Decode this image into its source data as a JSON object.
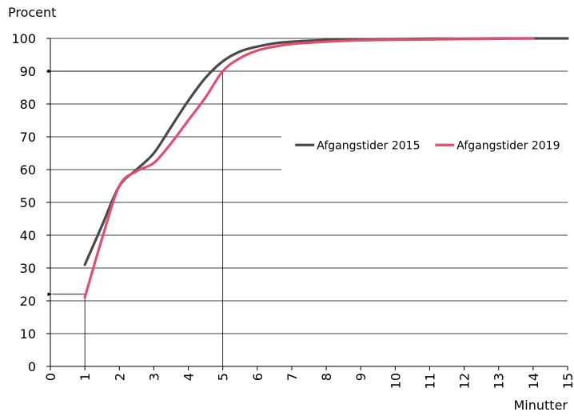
{
  "chart_data": {
    "type": "line",
    "ylabel": "Procent",
    "xlabel": "Minutter",
    "xlim": [
      0,
      15
    ],
    "ylim": [
      0,
      100
    ],
    "x_ticks": [
      0,
      1,
      2,
      3,
      4,
      5,
      6,
      7,
      8,
      9,
      10,
      11,
      12,
      13,
      14,
      15
    ],
    "y_ticks": [
      0,
      10,
      20,
      30,
      40,
      50,
      60,
      70,
      80,
      90,
      100
    ],
    "grid": "horizontal",
    "legend_placement": "right-middle",
    "series": [
      {
        "name": "Afgangstider 2015",
        "color": "#4a4a4a",
        "x": [
          1,
          1.5,
          2,
          2.5,
          3,
          3.5,
          4,
          4.5,
          5,
          5.5,
          6,
          6.5,
          7,
          8,
          9,
          10,
          11,
          12,
          13,
          14,
          15
        ],
        "y": [
          31,
          43,
          55,
          60,
          65,
          73,
          81,
          88,
          93,
          96,
          97.5,
          98.5,
          99,
          99.5,
          99.7,
          99.8,
          99.9,
          99.9,
          100,
          100,
          100
        ]
      },
      {
        "name": "Afgangstider 2019",
        "color": "#e0506e",
        "x": [
          1,
          1.5,
          2,
          2.5,
          3,
          3.5,
          4,
          4.5,
          5,
          5.5,
          6,
          6.5,
          7,
          8,
          9,
          10,
          11,
          12,
          13,
          14
        ],
        "y": [
          21,
          39,
          55,
          59.5,
          62,
          68,
          75,
          82,
          90,
          94,
          96.3,
          97.5,
          98.3,
          99,
          99.4,
          99.6,
          99.7,
          99.8,
          99.9,
          100
        ]
      }
    ],
    "annotations": [
      {
        "type": "reference-lines",
        "x": 5,
        "y": 90
      },
      {
        "type": "reference-lines",
        "x": 1,
        "y": 22
      }
    ]
  }
}
